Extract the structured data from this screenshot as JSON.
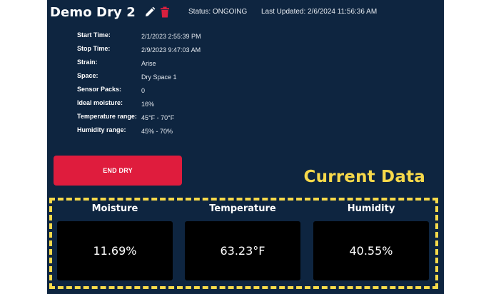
{
  "header": {
    "title": "Demo Dry 2",
    "status": "Status: ONGOING",
    "last_updated": "Last Updated: 2/6/2024 11:56:36 AM"
  },
  "details": [
    {
      "label": "Start Time:",
      "value": "2/1/2023 2:55:39 PM"
    },
    {
      "label": "Stop Time:",
      "value": "2/9/2023 9:47:03 AM"
    },
    {
      "label": "Strain:",
      "value": "Arise"
    },
    {
      "label": "Space:",
      "value": "Dry Space 1"
    },
    {
      "label": "Sensor Packs:",
      "value": "0"
    },
    {
      "label": "Ideal moisture:",
      "value": "16%"
    },
    {
      "label": "Temperature range:",
      "value": "45°F - 70°F"
    },
    {
      "label": "Humidity range:",
      "value": "45% - 70%"
    }
  ],
  "actions": {
    "end_label": "END DRY"
  },
  "current_data": {
    "label": "Current Data",
    "metrics": [
      {
        "title": "Moisture",
        "value": "11.69%"
      },
      {
        "title": "Temperature",
        "value": "63.23°F"
      },
      {
        "title": "Humidity",
        "value": "40.55%"
      }
    ]
  },
  "colors": {
    "panel_background": "#0e2540",
    "end_button": "#df1c3d",
    "highlight": "#f7d94a",
    "trash_icon": "#d8203f"
  },
  "icons": {
    "edit": "pencil-icon",
    "delete": "trash-icon"
  }
}
